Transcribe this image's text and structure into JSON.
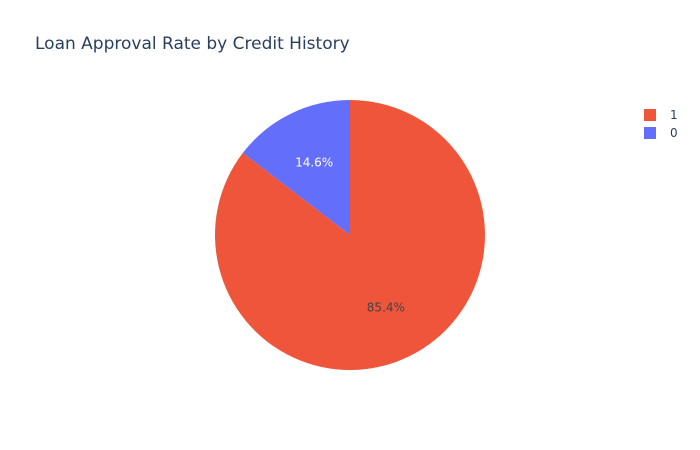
{
  "chart_data": {
    "type": "pie",
    "title": "Loan Approval Rate by Credit History",
    "legend_position": "top-right",
    "slices": [
      {
        "label": "1",
        "value": 85.4,
        "text": "85.4%",
        "color": "#EF553B",
        "text_color": "#444444"
      },
      {
        "label": "0",
        "value": 14.6,
        "text": "14.6%",
        "color": "#636EFA",
        "text_color": "#ffffff"
      }
    ],
    "direction": "clockwise",
    "start_angle_from_top_deg": 0
  }
}
